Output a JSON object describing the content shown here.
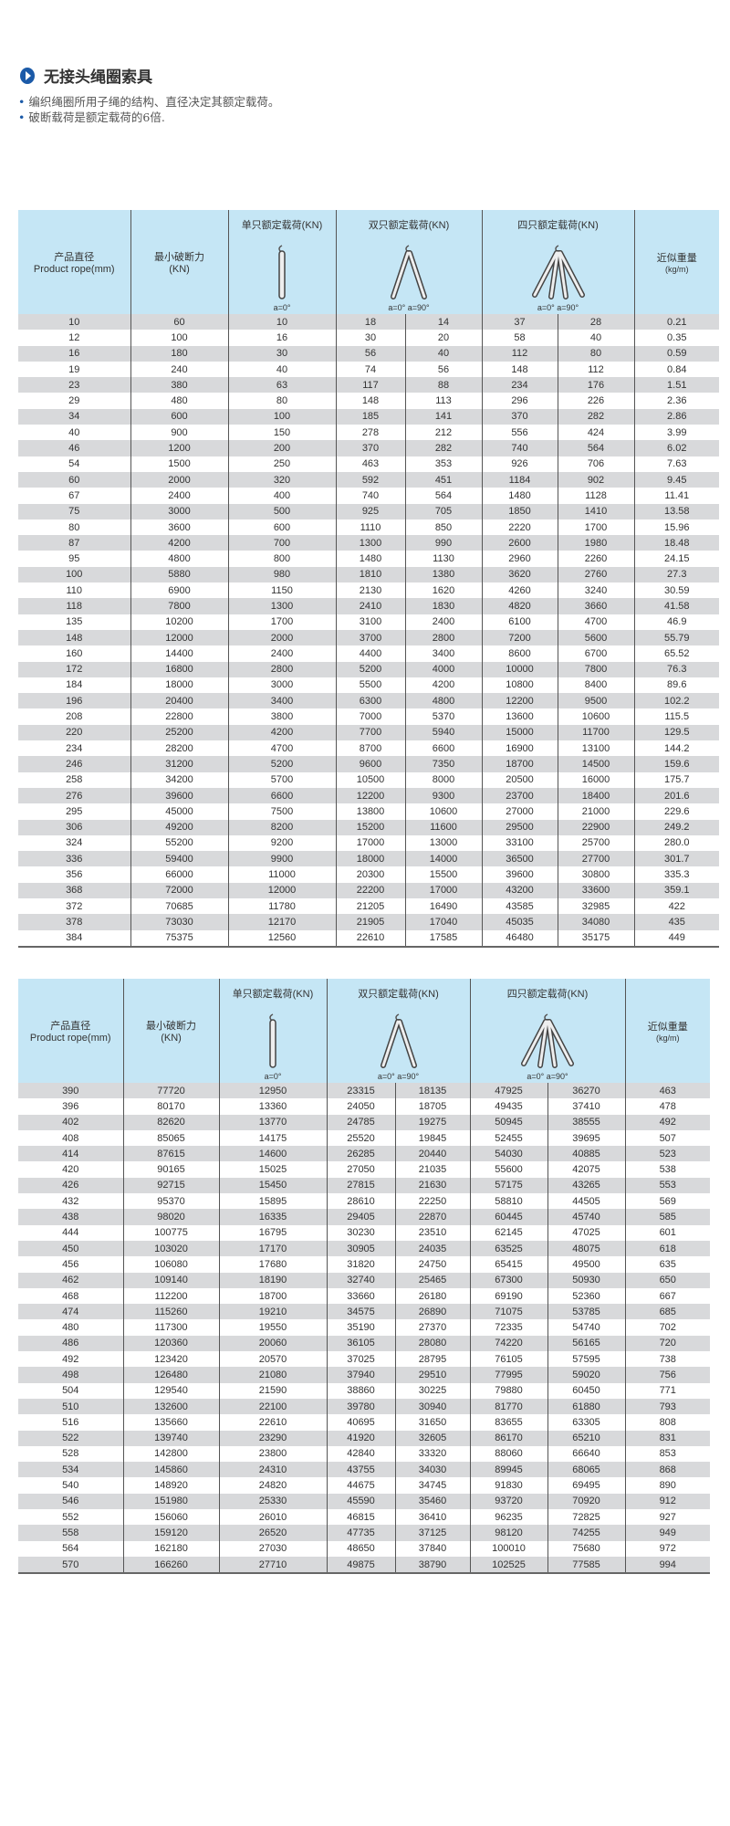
{
  "title": "无接头绳圈索具",
  "notes": [
    "编织绳圈所用子绳的结构、直径决定其额定载荷。",
    "破断载荷是额定载荷的6倍."
  ],
  "colors": {
    "header_bg": "#c5e6f5",
    "row_alt": "#d8d9db",
    "bullet": "#1b5aa8"
  },
  "headers": {
    "diameter_cn": "产品直径",
    "diameter_en": "Product rope(mm)",
    "min_break_cn": "最小破断力",
    "min_break_unit": "(KN)",
    "single": "单只额定载荷(KN)",
    "double": "双只额定载荷(KN)",
    "quad": "四只额定载荷(KN)",
    "weight_cn": "近似重量",
    "weight_unit": "(kg/m)",
    "angle_single": "a=0°",
    "angle_multi": "a=0°  a=90°"
  },
  "icons": {
    "single": "single-sling-icon",
    "double": "double-sling-icon",
    "quad": "quad-sling-icon"
  },
  "table1": [
    [
      "10",
      "60",
      "10",
      "18",
      "14",
      "37",
      "28",
      "0.21"
    ],
    [
      "12",
      "100",
      "16",
      "30",
      "20",
      "58",
      "40",
      "0.35"
    ],
    [
      "16",
      "180",
      "30",
      "56",
      "40",
      "112",
      "80",
      "0.59"
    ],
    [
      "19",
      "240",
      "40",
      "74",
      "56",
      "148",
      "112",
      "0.84"
    ],
    [
      "23",
      "380",
      "63",
      "117",
      "88",
      "234",
      "176",
      "1.51"
    ],
    [
      "29",
      "480",
      "80",
      "148",
      "113",
      "296",
      "226",
      "2.36"
    ],
    [
      "34",
      "600",
      "100",
      "185",
      "141",
      "370",
      "282",
      "2.86"
    ],
    [
      "40",
      "900",
      "150",
      "278",
      "212",
      "556",
      "424",
      "3.99"
    ],
    [
      "46",
      "1200",
      "200",
      "370",
      "282",
      "740",
      "564",
      "6.02"
    ],
    [
      "54",
      "1500",
      "250",
      "463",
      "353",
      "926",
      "706",
      "7.63"
    ],
    [
      "60",
      "2000",
      "320",
      "592",
      "451",
      "1184",
      "902",
      "9.45"
    ],
    [
      "67",
      "2400",
      "400",
      "740",
      "564",
      "1480",
      "1128",
      "11.41"
    ],
    [
      "75",
      "3000",
      "500",
      "925",
      "705",
      "1850",
      "1410",
      "13.58"
    ],
    [
      "80",
      "3600",
      "600",
      "1110",
      "850",
      "2220",
      "1700",
      "15.96"
    ],
    [
      "87",
      "4200",
      "700",
      "1300",
      "990",
      "2600",
      "1980",
      "18.48"
    ],
    [
      "95",
      "4800",
      "800",
      "1480",
      "1130",
      "2960",
      "2260",
      "24.15"
    ],
    [
      "100",
      "5880",
      "980",
      "1810",
      "1380",
      "3620",
      "2760",
      "27.3"
    ],
    [
      "110",
      "6900",
      "1150",
      "2130",
      "1620",
      "4260",
      "3240",
      "30.59"
    ],
    [
      "118",
      "7800",
      "1300",
      "2410",
      "1830",
      "4820",
      "3660",
      "41.58"
    ],
    [
      "135",
      "10200",
      "1700",
      "3100",
      "2400",
      "6100",
      "4700",
      "46.9"
    ],
    [
      "148",
      "12000",
      "2000",
      "3700",
      "2800",
      "7200",
      "5600",
      "55.79"
    ],
    [
      "160",
      "14400",
      "2400",
      "4400",
      "3400",
      "8600",
      "6700",
      "65.52"
    ],
    [
      "172",
      "16800",
      "2800",
      "5200",
      "4000",
      "10000",
      "7800",
      "76.3"
    ],
    [
      "184",
      "18000",
      "3000",
      "5500",
      "4200",
      "10800",
      "8400",
      "89.6"
    ],
    [
      "196",
      "20400",
      "3400",
      "6300",
      "4800",
      "12200",
      "9500",
      "102.2"
    ],
    [
      "208",
      "22800",
      "3800",
      "7000",
      "5370",
      "13600",
      "10600",
      "115.5"
    ],
    [
      "220",
      "25200",
      "4200",
      "7700",
      "5940",
      "15000",
      "11700",
      "129.5"
    ],
    [
      "234",
      "28200",
      "4700",
      "8700",
      "6600",
      "16900",
      "13100",
      "144.2"
    ],
    [
      "246",
      "31200",
      "5200",
      "9600",
      "7350",
      "18700",
      "14500",
      "159.6"
    ],
    [
      "258",
      "34200",
      "5700",
      "10500",
      "8000",
      "20500",
      "16000",
      "175.7"
    ],
    [
      "276",
      "39600",
      "6600",
      "12200",
      "9300",
      "23700",
      "18400",
      "201.6"
    ],
    [
      "295",
      "45000",
      "7500",
      "13800",
      "10600",
      "27000",
      "21000",
      "229.6"
    ],
    [
      "306",
      "49200",
      "8200",
      "15200",
      "11600",
      "29500",
      "22900",
      "249.2"
    ],
    [
      "324",
      "55200",
      "9200",
      "17000",
      "13000",
      "33100",
      "25700",
      "280.0"
    ],
    [
      "336",
      "59400",
      "9900",
      "18000",
      "14000",
      "36500",
      "27700",
      "301.7"
    ],
    [
      "356",
      "66000",
      "11000",
      "20300",
      "15500",
      "39600",
      "30800",
      "335.3"
    ],
    [
      "368",
      "72000",
      "12000",
      "22200",
      "17000",
      "43200",
      "33600",
      "359.1"
    ],
    [
      "372",
      "70685",
      "11780",
      "21205",
      "16490",
      "43585",
      "32985",
      "422"
    ],
    [
      "378",
      "73030",
      "12170",
      "21905",
      "17040",
      "45035",
      "34080",
      "435"
    ],
    [
      "384",
      "75375",
      "12560",
      "22610",
      "17585",
      "46480",
      "35175",
      "449"
    ]
  ],
  "table2": [
    [
      "390",
      "77720",
      "12950",
      "23315",
      "18135",
      "47925",
      "36270",
      "463"
    ],
    [
      "396",
      "80170",
      "13360",
      "24050",
      "18705",
      "49435",
      "37410",
      "478"
    ],
    [
      "402",
      "82620",
      "13770",
      "24785",
      "19275",
      "50945",
      "38555",
      "492"
    ],
    [
      "408",
      "85065",
      "14175",
      "25520",
      "19845",
      "52455",
      "39695",
      "507"
    ],
    [
      "414",
      "87615",
      "14600",
      "26285",
      "20440",
      "54030",
      "40885",
      "523"
    ],
    [
      "420",
      "90165",
      "15025",
      "27050",
      "21035",
      "55600",
      "42075",
      "538"
    ],
    [
      "426",
      "92715",
      "15450",
      "27815",
      "21630",
      "57175",
      "43265",
      "553"
    ],
    [
      "432",
      "95370",
      "15895",
      "28610",
      "22250",
      "58810",
      "44505",
      "569"
    ],
    [
      "438",
      "98020",
      "16335",
      "29405",
      "22870",
      "60445",
      "45740",
      "585"
    ],
    [
      "444",
      "100775",
      "16795",
      "30230",
      "23510",
      "62145",
      "47025",
      "601"
    ],
    [
      "450",
      "103020",
      "17170",
      "30905",
      "24035",
      "63525",
      "48075",
      "618"
    ],
    [
      "456",
      "106080",
      "17680",
      "31820",
      "24750",
      "65415",
      "49500",
      "635"
    ],
    [
      "462",
      "109140",
      "18190",
      "32740",
      "25465",
      "67300",
      "50930",
      "650"
    ],
    [
      "468",
      "112200",
      "18700",
      "33660",
      "26180",
      "69190",
      "52360",
      "667"
    ],
    [
      "474",
      "115260",
      "19210",
      "34575",
      "26890",
      "71075",
      "53785",
      "685"
    ],
    [
      "480",
      "117300",
      "19550",
      "35190",
      "27370",
      "72335",
      "54740",
      "702"
    ],
    [
      "486",
      "120360",
      "20060",
      "36105",
      "28080",
      "74220",
      "56165",
      "720"
    ],
    [
      "492",
      "123420",
      "20570",
      "37025",
      "28795",
      "76105",
      "57595",
      "738"
    ],
    [
      "498",
      "126480",
      "21080",
      "37940",
      "29510",
      "77995",
      "59020",
      "756"
    ],
    [
      "504",
      "129540",
      "21590",
      "38860",
      "30225",
      "79880",
      "60450",
      "771"
    ],
    [
      "510",
      "132600",
      "22100",
      "39780",
      "30940",
      "81770",
      "61880",
      "793"
    ],
    [
      "516",
      "135660",
      "22610",
      "40695",
      "31650",
      "83655",
      "63305",
      "808"
    ],
    [
      "522",
      "139740",
      "23290",
      "41920",
      "32605",
      "86170",
      "65210",
      "831"
    ],
    [
      "528",
      "142800",
      "23800",
      "42840",
      "33320",
      "88060",
      "66640",
      "853"
    ],
    [
      "534",
      "145860",
      "24310",
      "43755",
      "34030",
      "89945",
      "68065",
      "868"
    ],
    [
      "540",
      "148920",
      "24820",
      "44675",
      "34745",
      "91830",
      "69495",
      "890"
    ],
    [
      "546",
      "151980",
      "25330",
      "45590",
      "35460",
      "93720",
      "70920",
      "912"
    ],
    [
      "552",
      "156060",
      "26010",
      "46815",
      "36410",
      "96235",
      "72825",
      "927"
    ],
    [
      "558",
      "159120",
      "26520",
      "47735",
      "37125",
      "98120",
      "74255",
      "949"
    ],
    [
      "564",
      "162180",
      "27030",
      "48650",
      "37840",
      "100010",
      "75680",
      "972"
    ],
    [
      "570",
      "166260",
      "27710",
      "49875",
      "38790",
      "102525",
      "77585",
      "994"
    ]
  ]
}
